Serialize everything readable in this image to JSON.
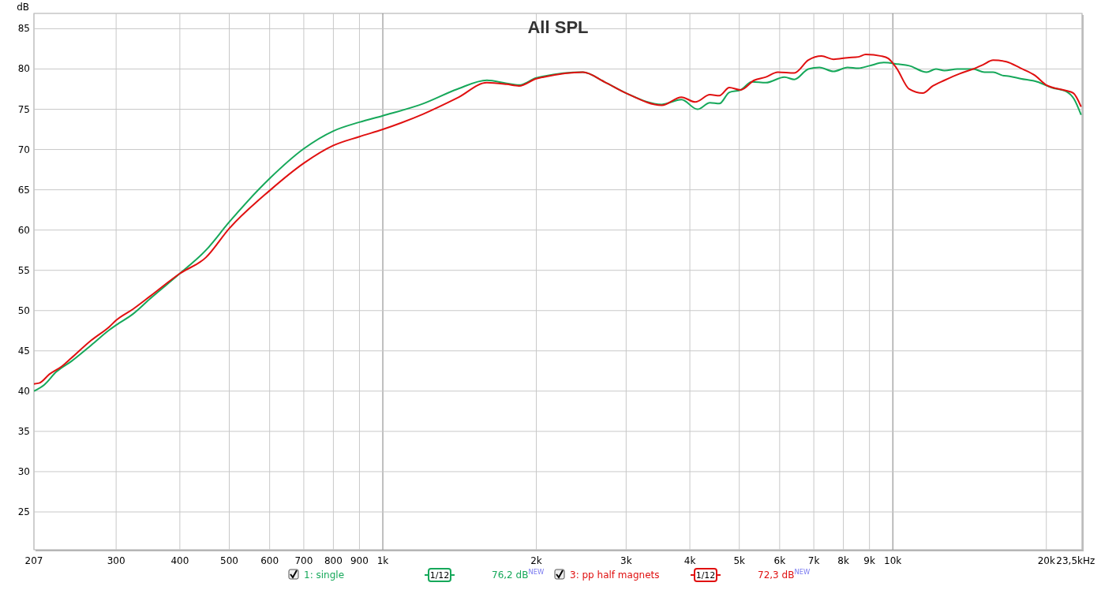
{
  "chart_data": {
    "type": "line",
    "title": "All SPL",
    "ylabel": "dB",
    "log": "x",
    "grid": true,
    "legend": "bottom",
    "xlim": [
      207,
      23500
    ],
    "ylim": [
      20.3,
      86.9
    ],
    "xticks": [
      207,
      300,
      400,
      500,
      600,
      700,
      800,
      900,
      {
        "value": 1000,
        "label": "1k"
      },
      {
        "value": 2000,
        "label": "2k"
      },
      {
        "value": 3000,
        "label": "3k"
      },
      {
        "value": 4000,
        "label": "4k"
      },
      {
        "value": 5000,
        "label": "5k"
      },
      {
        "value": 6000,
        "label": "6k"
      },
      {
        "value": 7000,
        "label": "7k"
      },
      {
        "value": 8000,
        "label": "8k"
      },
      {
        "value": 9000,
        "label": "9k"
      },
      {
        "value": 10000,
        "label": "10k"
      },
      {
        "value": 20000,
        "label": "20k"
      },
      {
        "value": 23500,
        "label": "23,5k"
      }
    ],
    "xlabel": "Hz",
    "yticks": [
      25,
      30,
      35,
      40,
      45,
      50,
      55,
      60,
      65,
      70,
      75,
      80,
      85
    ],
    "annotations": [
      "1/12",
      "76,2 dB$^{NEW}$",
      "1/12",
      "72,3 dB$^{NEW}$"
    ],
    "series": [
      {
        "name": "1: single",
        "color": "#16a85a",
        "x": [
          207,
          217,
          229,
          245,
          268,
          291,
          300,
          324,
          350,
          400,
          450,
          500,
          600,
          700,
          800,
          900,
          1000,
          1200,
          1400,
          1600,
          1750,
          1850,
          2000,
          2066,
          2468,
          2720,
          3000,
          3524,
          3850,
          4140,
          4380,
          4570,
          4780,
          5030,
          5290,
          5640,
          6130,
          6410,
          6830,
          7180,
          7650,
          8150,
          8560,
          9000,
          9600,
          10250,
          10770,
          11650,
          12150,
          12630,
          13380,
          14370,
          15120,
          15730,
          16400,
          16940,
          17800,
          19200,
          20470,
          21900,
          22650,
          23400
        ],
        "values": [
          40.0,
          40.8,
          42.4,
          43.7,
          45.7,
          47.6,
          48.2,
          49.6,
          51.5,
          54.6,
          57.5,
          61.0,
          66.4,
          70.1,
          72.3,
          73.4,
          74.2,
          75.7,
          77.5,
          78.6,
          78.2,
          78.0,
          78.9,
          79.1,
          79.6,
          78.4,
          77.0,
          75.6,
          76.2,
          75.0,
          75.8,
          75.7,
          77.1,
          77.4,
          78.4,
          78.3,
          79.0,
          78.7,
          80.0,
          80.2,
          79.7,
          80.2,
          80.1,
          80.4,
          80.8,
          80.6,
          80.4,
          79.6,
          80.0,
          79.8,
          80.0,
          80.0,
          79.6,
          79.6,
          79.2,
          79.1,
          78.8,
          78.4,
          77.7,
          77.2,
          76.3,
          74.3
        ]
      },
      {
        "name": "3: pp half magnets",
        "color": "#e01010",
        "x": [
          207,
          212,
          222,
          235,
          245,
          268,
          291,
          300,
          324,
          350,
          400,
          450,
          500,
          600,
          700,
          800,
          900,
          1000,
          1200,
          1400,
          1600,
          1750,
          1850,
          2000,
          2066,
          2468,
          2720,
          3000,
          3524,
          3850,
          4100,
          4380,
          4570,
          4780,
          5030,
          5350,
          5640,
          5950,
          6410,
          6830,
          7250,
          7650,
          8150,
          8560,
          8850,
          9500,
          9800,
          10170,
          10770,
          11450,
          11980,
          12630,
          13500,
          14370,
          15000,
          15730,
          16700,
          17800,
          19000,
          20000,
          21900,
          22600,
          23400
        ],
        "values": [
          40.9,
          41.0,
          42.1,
          43.1,
          44.1,
          46.3,
          48.0,
          48.8,
          50.2,
          51.8,
          54.6,
          56.6,
          60.2,
          64.9,
          68.3,
          70.5,
          71.6,
          72.5,
          74.4,
          76.4,
          78.3,
          78.1,
          77.9,
          78.8,
          79.0,
          79.6,
          78.4,
          77.0,
          75.5,
          76.5,
          75.9,
          76.8,
          76.7,
          77.7,
          77.4,
          78.6,
          79.0,
          79.6,
          79.5,
          81.1,
          81.6,
          81.2,
          81.4,
          81.5,
          81.8,
          81.6,
          81.3,
          80.1,
          77.5,
          77.0,
          77.9,
          78.6,
          79.4,
          80.0,
          80.5,
          81.1,
          80.9,
          80.1,
          79.2,
          78.0,
          77.3,
          77.0,
          75.3
        ]
      }
    ]
  }
}
